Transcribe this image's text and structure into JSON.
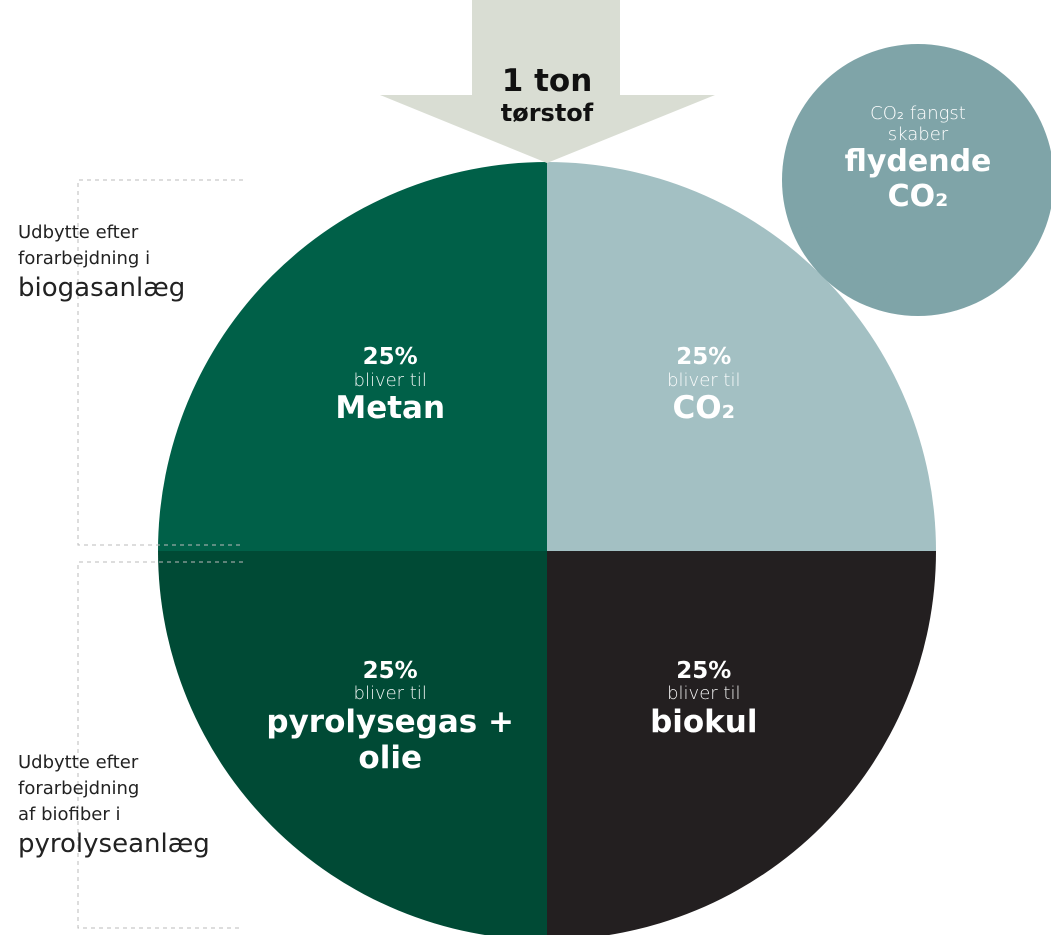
{
  "chart_data": {
    "type": "pie",
    "categories": [
      "CO₂",
      "biokul",
      "pyrolysegas + olie",
      "Metan"
    ],
    "values": [
      25,
      25,
      25,
      25
    ],
    "value_labels": [
      "25%",
      "25%",
      "25%",
      "25%"
    ],
    "colors": [
      "#a3c0c3",
      "#231f20",
      "#004a35",
      "#006048"
    ],
    "slice_caption": "bliver til",
    "input_label": [
      "1 ton",
      "tørstof"
    ],
    "bubble": {
      "caption": [
        "CO₂ fangst",
        "skaber"
      ],
      "title": [
        "flydende",
        "CO₂"
      ]
    },
    "side_labels": [
      {
        "lines": [
          "Udbytte efter",
          "forarbejdning i"
        ],
        "emphasis": "biogasanlæg"
      },
      {
        "lines": [
          "Udbytte efter",
          "forarbejdning",
          "af biofiber i"
        ],
        "emphasis": "pyrolyseanlæg"
      }
    ]
  }
}
